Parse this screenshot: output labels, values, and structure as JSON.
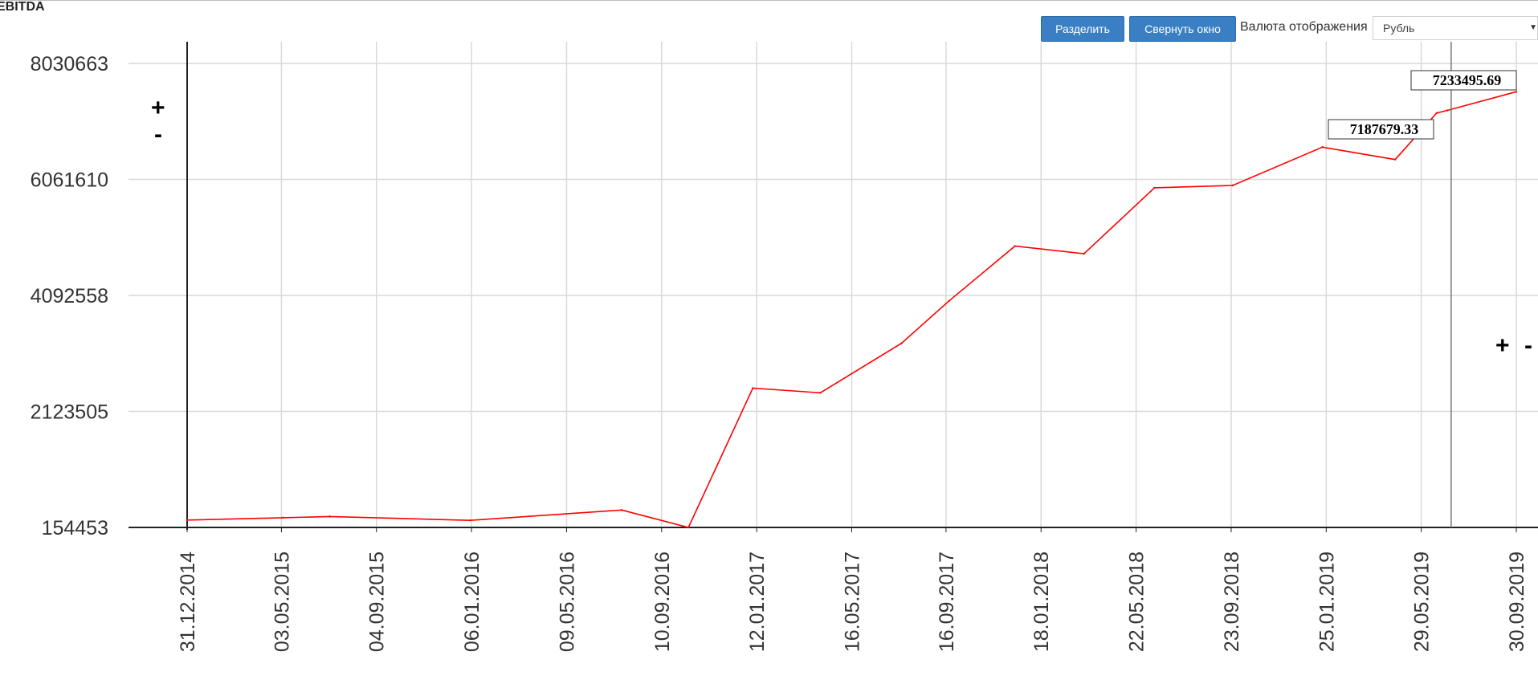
{
  "title": "EBITDA",
  "toolbar": {
    "split_label": "Разделить",
    "collapse_label": "Свернуть окно",
    "currency_label": "Валюта отображения",
    "currency_value": "Рубль"
  },
  "zoom": {
    "y_plus": "+",
    "y_minus": "-",
    "x_plus": "+",
    "x_minus": "-"
  },
  "colors": {
    "line": "#ff0000",
    "grid": "#d9d9d9",
    "axis": "#222222",
    "button": "#3a7fc4"
  },
  "chart_data": {
    "type": "line",
    "title": "EBITDA",
    "xlabel": "",
    "ylabel": "",
    "grid": true,
    "x_ticks": [
      "31.12.2014",
      "03.05.2015",
      "04.09.2015",
      "06.01.2016",
      "09.05.2016",
      "10.09.2016",
      "12.01.2017",
      "16.05.2017",
      "16.09.2017",
      "18.01.2018",
      "22.05.2018",
      "23.09.2018",
      "25.01.2019",
      "29.05.2019",
      "30.09.2019"
    ],
    "y_ticks": [
      154453,
      2123505,
      4092558,
      6061610,
      8030663
    ],
    "ylim": [
      154453,
      8030663
    ],
    "x_range": [
      "2014-12-31",
      "2019-09-30"
    ],
    "series": [
      {
        "points": [
          [
            "2014-12-31",
            280000
          ],
          [
            "2015-05-05",
            320000
          ],
          [
            "2015-07-05",
            340000
          ],
          [
            "2016-01-04",
            275000
          ],
          [
            "2016-07-20",
            450000
          ],
          [
            "2016-10-15",
            154453
          ],
          [
            "2017-01-07",
            2520000
          ],
          [
            "2017-04-05",
            2440000
          ],
          [
            "2017-07-20",
            3280000
          ],
          [
            "2017-09-20",
            4000000
          ],
          [
            "2017-12-15",
            4930000
          ],
          [
            "2018-03-15",
            4800000
          ],
          [
            "2018-06-15",
            5920000
          ],
          [
            "2018-09-25",
            5960000
          ],
          [
            "2019-01-20",
            6610000
          ],
          [
            "2019-04-25",
            6400000
          ],
          [
            "2019-06-18",
            7187679.33
          ],
          [
            "2019-07-02",
            7233495.69
          ],
          [
            "2019-09-30",
            7550000
          ]
        ]
      }
    ],
    "annotations": [
      {
        "label": "7187679.33"
      },
      {
        "label": "7233495.69"
      }
    ],
    "cursor_date": "2019-07-07"
  }
}
